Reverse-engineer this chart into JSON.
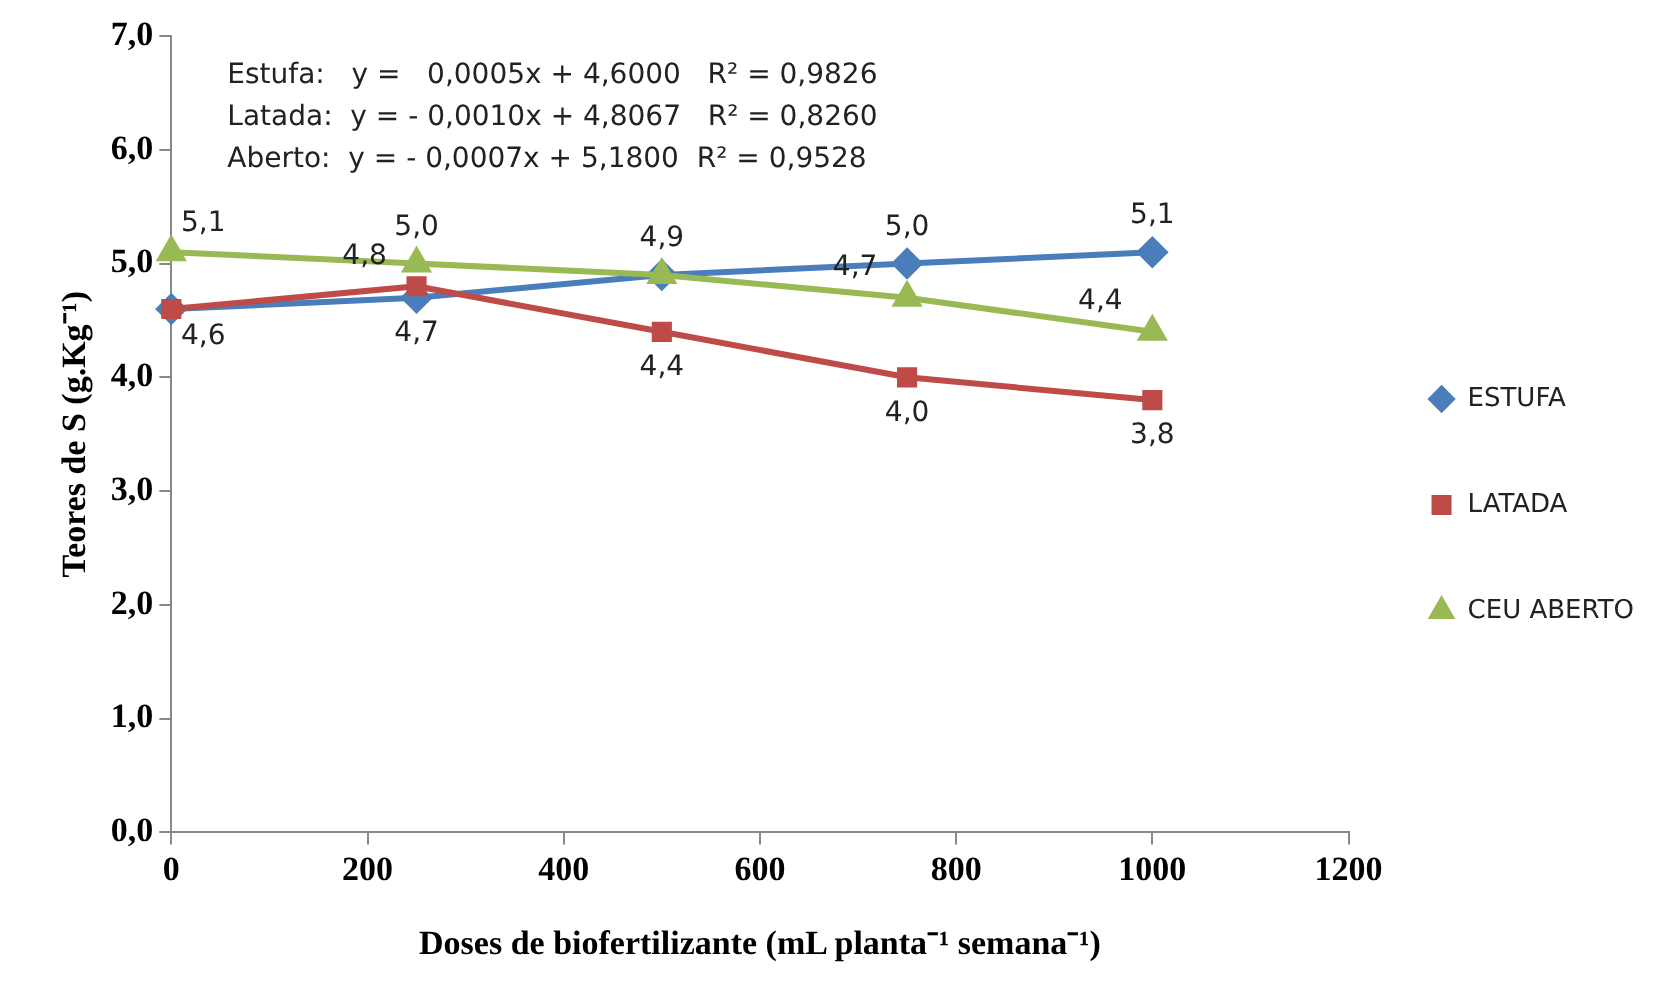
{
  "chart_data": {
    "type": "line",
    "xlabel": "Doses de biofertilizante (mL planta⁻¹ semana⁻¹)",
    "ylabel": "Teores de S (g.Kg⁻¹)",
    "x": [
      0,
      250,
      500,
      750,
      1000
    ],
    "series": [
      {
        "name": "ESTUFA",
        "color": "#4a7ebb",
        "marker": "diamond",
        "values": [
          4.6,
          4.7,
          4.9,
          5.0,
          5.1
        ],
        "value_labels": [
          "4,6",
          "4,7",
          "4,9",
          "5,0",
          "5,1"
        ]
      },
      {
        "name": "LATADA",
        "color": "#be4b48",
        "marker": "square",
        "values": [
          4.6,
          4.8,
          4.4,
          4.0,
          3.8
        ],
        "value_labels": [
          null,
          "4,8",
          "4,4",
          "4,0",
          "3,8"
        ]
      },
      {
        "name": "CEU ABERTO",
        "color": "#98b954",
        "marker": "triangle",
        "values": [
          5.1,
          5.0,
          4.9,
          4.7,
          4.4
        ],
        "value_labels": [
          "5,1",
          "5,0",
          null,
          "4,7",
          "4,4"
        ]
      }
    ],
    "xlim": [
      0,
      1200
    ],
    "xticks": [
      0,
      200,
      400,
      600,
      800,
      1000,
      1200
    ],
    "ylim": [
      0,
      7
    ],
    "yticks": [
      {
        "value": 0,
        "label": "0,0"
      },
      {
        "value": 1,
        "label": "1,0"
      },
      {
        "value": 2,
        "label": "2,0"
      },
      {
        "value": 3,
        "label": "3,0"
      },
      {
        "value": 4,
        "label": "4,0"
      },
      {
        "value": 5,
        "label": "5,0"
      },
      {
        "value": 6,
        "label": "6,0"
      },
      {
        "value": 7,
        "label": "7,0"
      }
    ],
    "grid": false,
    "legend": "right",
    "annotations": [
      "Estufa:   y =   0,0005x + 4,6000   R² = 0,9826",
      "Latada:  y = - 0,0010x + 4,8067   R² = 0,8260",
      "Aberto:  y = - 0,0007x + 5,1800  R² = 0,9528"
    ]
  }
}
